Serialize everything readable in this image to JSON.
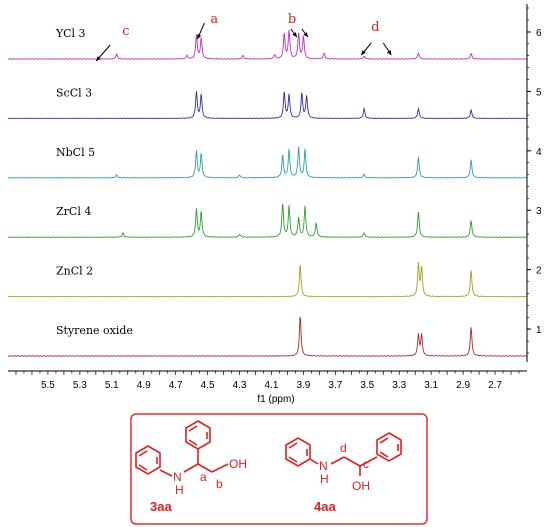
{
  "chart_data": {
    "type": "line",
    "subtype": "stacked 1H NMR spectra",
    "xlabel": "f1 (ppm)",
    "x_reversed": true,
    "xlim": [
      5.75,
      2.5
    ],
    "x_ticks": [
      "5.5",
      "5.3",
      "5.1",
      "4.9",
      "4.7",
      "4.5",
      "4.3",
      "4.1",
      "3.9",
      "3.7",
      "3.5",
      "3.3",
      "3.1",
      "2.9",
      "2.7"
    ],
    "y_ticks": [
      "1",
      "2",
      "3",
      "4",
      "5",
      "6"
    ],
    "series": [
      {
        "name": "YCl 3",
        "color": "#c030c0",
        "level": 6,
        "peaks": [
          {
            "ppm": 5.07,
            "height": 0.18
          },
          {
            "ppm": 4.63,
            "height": 0.12
          },
          {
            "ppm": 4.57,
            "height": 0.85
          },
          {
            "ppm": 4.54,
            "height": 0.75
          },
          {
            "ppm": 4.28,
            "height": 0.12
          },
          {
            "ppm": 4.08,
            "height": 0.15
          },
          {
            "ppm": 4.02,
            "height": 0.9
          },
          {
            "ppm": 3.99,
            "height": 1.0
          },
          {
            "ppm": 3.93,
            "height": 0.9
          },
          {
            "ppm": 3.9,
            "height": 0.8
          },
          {
            "ppm": 3.77,
            "height": 0.2
          },
          {
            "ppm": 3.52,
            "height": 0.1
          },
          {
            "ppm": 3.18,
            "height": 0.22
          },
          {
            "ppm": 2.85,
            "height": 0.2
          }
        ]
      },
      {
        "name": "ScCl 3",
        "color": "#3030a8",
        "level": 5,
        "peaks": [
          {
            "ppm": 4.57,
            "height": 0.95
          },
          {
            "ppm": 4.54,
            "height": 0.85
          },
          {
            "ppm": 4.02,
            "height": 0.95
          },
          {
            "ppm": 3.99,
            "height": 0.85
          },
          {
            "ppm": 3.91,
            "height": 0.9
          },
          {
            "ppm": 3.88,
            "height": 0.8
          },
          {
            "ppm": 3.52,
            "height": 0.35
          },
          {
            "ppm": 3.18,
            "height": 0.35
          },
          {
            "ppm": 2.85,
            "height": 0.3
          }
        ]
      },
      {
        "name": "NbCl 5",
        "color": "#30a0a0",
        "level": 4,
        "peaks": [
          {
            "ppm": 5.07,
            "height": 0.1
          },
          {
            "ppm": 4.57,
            "height": 0.95
          },
          {
            "ppm": 4.54,
            "height": 0.85
          },
          {
            "ppm": 4.3,
            "height": 0.1
          },
          {
            "ppm": 4.03,
            "height": 0.8
          },
          {
            "ppm": 3.99,
            "height": 1.0
          },
          {
            "ppm": 3.93,
            "height": 1.1
          },
          {
            "ppm": 3.89,
            "height": 1.0
          },
          {
            "ppm": 3.52,
            "height": 0.12
          },
          {
            "ppm": 3.18,
            "height": 0.75
          },
          {
            "ppm": 2.85,
            "height": 0.65
          }
        ]
      },
      {
        "name": "ZrCl 4",
        "color": "#30a030",
        "level": 3,
        "peaks": [
          {
            "ppm": 5.03,
            "height": 0.15
          },
          {
            "ppm": 4.57,
            "height": 1.0
          },
          {
            "ppm": 4.54,
            "height": 0.9
          },
          {
            "ppm": 4.3,
            "height": 0.1
          },
          {
            "ppm": 4.03,
            "height": 1.2
          },
          {
            "ppm": 3.99,
            "height": 1.1
          },
          {
            "ppm": 3.93,
            "height": 0.7
          },
          {
            "ppm": 3.89,
            "height": 1.1
          },
          {
            "ppm": 3.82,
            "height": 0.5
          },
          {
            "ppm": 3.52,
            "height": 0.15
          },
          {
            "ppm": 3.18,
            "height": 0.9
          },
          {
            "ppm": 2.85,
            "height": 0.6
          }
        ]
      },
      {
        "name": "ZnCl 2",
        "color": "#a8a020",
        "level": 2,
        "peaks": [
          {
            "ppm": 3.92,
            "height": 1.15
          },
          {
            "ppm": 3.18,
            "height": 1.15
          },
          {
            "ppm": 3.16,
            "height": 1.0
          },
          {
            "ppm": 2.85,
            "height": 0.95
          }
        ]
      },
      {
        "name": "Styrene oxide",
        "color": "#b02828",
        "level": 1,
        "peaks": [
          {
            "ppm": 3.92,
            "height": 1.45
          },
          {
            "ppm": 3.18,
            "height": 0.75
          },
          {
            "ppm": 3.16,
            "height": 0.75
          },
          {
            "ppm": 2.85,
            "height": 1.05
          }
        ]
      }
    ],
    "annotations": [
      {
        "text": "c",
        "color": "#e02020",
        "ppm": 5.06,
        "series": "YCl 3"
      },
      {
        "text": "a",
        "color": "#e02020",
        "ppm": 4.57,
        "series": "YCl 3"
      },
      {
        "text": "b",
        "color": "#e02020",
        "ppm": 3.96,
        "series": "YCl 3"
      },
      {
        "text": "d",
        "color": "#e02020",
        "ppm": 3.45,
        "series": "YCl 3"
      }
    ]
  },
  "structures": {
    "border_color": "#e03030",
    "compound_1": {
      "id": "3aa",
      "labels": [
        "N",
        "H",
        "a",
        "b",
        "OH"
      ]
    },
    "compound_2": {
      "id": "4aa",
      "labels": [
        "N",
        "H",
        "d",
        "c",
        "OH"
      ]
    }
  }
}
